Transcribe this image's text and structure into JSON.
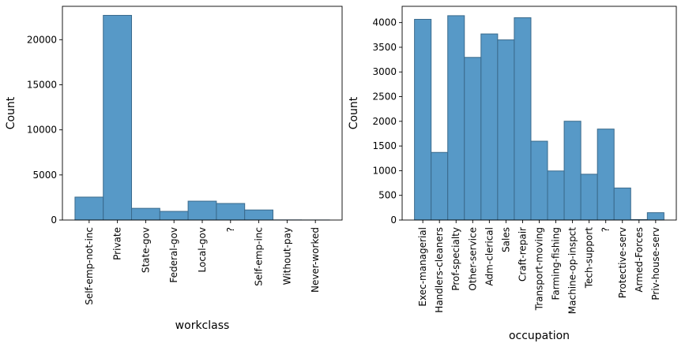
{
  "chart_data": [
    {
      "type": "bar",
      "xlabel": "workclass",
      "ylabel": "Count",
      "ylim": [
        0,
        23700
      ],
      "yticks": [
        0,
        5000,
        10000,
        15000,
        20000
      ],
      "grid": false,
      "categories": [
        "Self-emp-not-inc",
        "Private",
        "State-gov",
        "Federal-gov",
        "Local-gov",
        "?",
        "Self-emp-inc",
        "Without-pay",
        "Never-worked"
      ],
      "values": [
        2541,
        22696,
        1298,
        960,
        2093,
        1836,
        1116,
        14,
        7
      ],
      "colors": {
        "bar": "#5799c7",
        "edge": "#3a6a8c"
      }
    },
    {
      "type": "bar",
      "xlabel": "occupation",
      "ylabel": "Count",
      "ylim": [
        0,
        4330
      ],
      "yticks": [
        0,
        500,
        1000,
        1500,
        2000,
        2500,
        3000,
        3500,
        4000
      ],
      "grid": false,
      "categories": [
        "Exec-managerial",
        "Handlers-cleaners",
        "Prof-specialty",
        "Other-service",
        "Adm-clerical",
        "Sales",
        "Craft-repair",
        "Transport-moving",
        "Farming-fishing",
        "Machine-op-inspct",
        "Tech-support",
        "?",
        "Protective-serv",
        "Armed-Forces",
        "Priv-house-serv"
      ],
      "values": [
        4066,
        1370,
        4140,
        3295,
        3770,
        3650,
        4099,
        1597,
        994,
        2002,
        928,
        1843,
        649,
        9,
        149
      ],
      "colors": {
        "bar": "#5799c7",
        "edge": "#3a6a8c"
      }
    }
  ]
}
